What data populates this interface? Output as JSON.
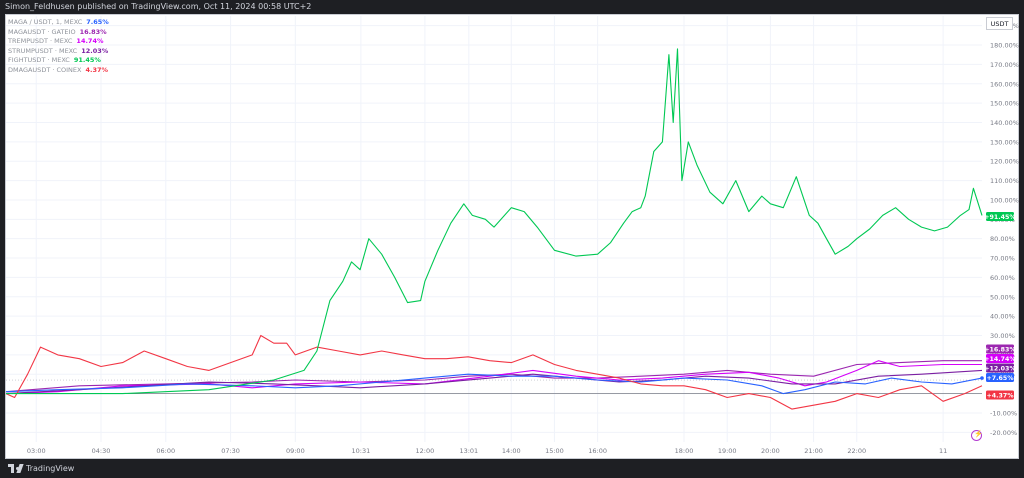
{
  "header": {
    "published": "Simon_Feldhusen published on TradingView.com, Oct 11, 2024 00:58 UTC+2"
  },
  "footer": {
    "brand": "TradingView"
  },
  "currency_button": "USDT",
  "colors": {
    "MAGA": "#2962ff",
    "MAGAUSDT": "#9c27b0",
    "TREMPUSDT": "#d500f9",
    "STRUMPUSDT": "#7b1fa2",
    "FIGHTUSDT": "#00c853",
    "DMAGAUSDT": "#f23645"
  },
  "legend": [
    {
      "name": "MAGA / USDT, 1, MEXC",
      "value": "7.65%",
      "color": "#2962ff"
    },
    {
      "name": "MAGAUSDT · GATEIO",
      "value": "16.83%",
      "color": "#9c27b0"
    },
    {
      "name": "TREMPUSDT · MEXC",
      "value": "14.74%",
      "color": "#d500f9"
    },
    {
      "name": "STRUMPUSDT · MEXC",
      "value": "12.03%",
      "color": "#7b1fa2"
    },
    {
      "name": "FIGHTUSDT · MEXC",
      "value": "91.45%",
      "color": "#00c853"
    },
    {
      "name": "DMAGAUSDT · COINEX",
      "value": "4.37%",
      "color": "#f23645"
    }
  ],
  "chart_data": {
    "type": "line",
    "ylabel_unit": "%",
    "ylim": [
      -25,
      195
    ],
    "y_ticks": [
      "190.00%",
      "180.00%",
      "170.00%",
      "160.00%",
      "150.00%",
      "140.00%",
      "130.00%",
      "120.00%",
      "110.00%",
      "100.00%",
      "90.00%",
      "80.00%",
      "70.00%",
      "60.00%",
      "50.00%",
      "40.00%",
      "30.00%",
      "20.00%",
      "10.00%",
      "0.00%",
      "-10.00%",
      "-20.00%"
    ],
    "y_tick_values": [
      190,
      180,
      170,
      160,
      150,
      140,
      130,
      120,
      110,
      100,
      90,
      80,
      70,
      60,
      50,
      40,
      30,
      20,
      10,
      0,
      -10,
      -20
    ],
    "x_ticks": [
      "03:00",
      "04:30",
      "06:00",
      "07:30",
      "09:00",
      "10:31",
      "12:00",
      "13:01",
      "14:00",
      "15:00",
      "16:00",
      "18:00",
      "19:00",
      "20:00",
      "21:00",
      "22:00",
      "11"
    ],
    "x_tick_hours": [
      3,
      4.5,
      6,
      7.5,
      9,
      10.517,
      12,
      13.017,
      14,
      15,
      16,
      18,
      19,
      20,
      21,
      22,
      24
    ],
    "x_range_hours": [
      2.3,
      24.9
    ],
    "series": [
      {
        "key": "FIGHTUSDT",
        "label": "+91.45%",
        "x": [
          2.3,
          5,
          7,
          8.5,
          9.2,
          9.5,
          9.8,
          10.1,
          10.3,
          10.5,
          10.7,
          11,
          11.3,
          11.6,
          11.9,
          12,
          12.3,
          12.6,
          12.9,
          13.1,
          13.4,
          13.6,
          14,
          14.3,
          14.6,
          15,
          15.5,
          16,
          16.3,
          16.6,
          16.8,
          17,
          17.1,
          17.3,
          17.5,
          17.65,
          17.75,
          17.85,
          17.95,
          18.1,
          18.3,
          18.6,
          18.9,
          19.2,
          19.5,
          19.8,
          20,
          20.3,
          20.6,
          20.9,
          21.1,
          21.3,
          21.5,
          21.8,
          22,
          22.3,
          22.6,
          22.9,
          23.2,
          23.5,
          23.8,
          24.1,
          24.4,
          24.6,
          24.7,
          24.9
        ],
        "y": [
          0,
          0,
          2,
          7,
          12,
          22,
          48,
          58,
          68,
          64,
          80,
          72,
          60,
          47,
          48,
          58,
          74,
          88,
          98,
          92,
          90,
          86,
          96,
          94,
          86,
          74,
          71,
          72,
          78,
          88,
          94,
          96,
          102,
          125,
          130,
          175,
          140,
          178,
          110,
          130,
          118,
          104,
          98,
          110,
          94,
          102,
          98,
          96,
          112,
          92,
          88,
          80,
          72,
          76,
          80,
          85,
          92,
          96,
          90,
          86,
          84,
          86,
          92,
          95,
          106,
          92
        ]
      },
      {
        "key": "MAGAUSDT",
        "label": "+16.83%",
        "x": [
          2.3,
          4,
          6,
          8,
          9,
          10.5,
          12,
          13,
          14,
          15,
          16,
          17,
          18,
          19,
          20,
          21,
          22,
          23,
          24,
          24.9
        ],
        "y": [
          1,
          4,
          5,
          6,
          7,
          6,
          7,
          9,
          10,
          8,
          8,
          9,
          10,
          12,
          10,
          9,
          15,
          16,
          17,
          17
        ]
      },
      {
        "key": "TREMPUSDT",
        "label": "+14.74%",
        "x": [
          2.3,
          3.5,
          5,
          7,
          8,
          9,
          10.5,
          12,
          13.5,
          14.5,
          15.5,
          16.5,
          17.5,
          18.5,
          19.5,
          20.2,
          20.8,
          21.3,
          22,
          22.5,
          23,
          24,
          24.9
        ],
        "y": [
          0,
          1,
          4,
          5,
          3,
          5,
          6,
          5,
          9,
          12,
          9,
          7,
          8,
          10,
          11,
          8,
          4,
          6,
          12,
          17,
          14,
          15,
          15
        ]
      },
      {
        "key": "STRUMPUSDT",
        "label": "+12.03%",
        "x": [
          2.3,
          4,
          5.5,
          7,
          8.5,
          9.5,
          10.5,
          12,
          13.5,
          14.5,
          15.5,
          16.5,
          17.5,
          18.5,
          19.5,
          20.5,
          21.5,
          22.5,
          23.5,
          24.9
        ],
        "y": [
          0,
          2,
          4,
          6,
          5,
          4,
          3,
          5,
          8,
          10,
          8,
          6,
          7,
          9,
          8,
          5,
          5,
          9,
          10,
          12
        ]
      },
      {
        "key": "MAGA",
        "label": "+7.65%",
        "x": [
          2.3,
          3.5,
          5,
          6.5,
          8,
          9,
          10,
          11,
          12,
          13,
          14,
          15,
          16,
          17,
          18,
          19,
          19.8,
          20.3,
          20.8,
          21.5,
          22.2,
          22.8,
          23.5,
          24.2,
          24.9
        ],
        "y": [
          1,
          2,
          3,
          5,
          4,
          3,
          4,
          6,
          8,
          10,
          9,
          9,
          7,
          6,
          8,
          7,
          4,
          0,
          2,
          6,
          5,
          8,
          6,
          5,
          8
        ]
      },
      {
        "key": "DMAGAUSDT",
        "label": "+4.37%",
        "x": [
          2.3,
          2.5,
          2.8,
          3.1,
          3.5,
          4,
          4.5,
          5,
          5.5,
          6,
          6.5,
          7,
          7.5,
          8,
          8.2,
          8.5,
          8.8,
          9,
          9.5,
          10,
          10.5,
          11,
          11.5,
          12,
          12.5,
          13,
          13.5,
          14,
          14.5,
          15,
          15.5,
          16,
          16.5,
          17,
          17.5,
          18,
          18.5,
          19,
          19.5,
          20,
          20.5,
          21,
          21.5,
          22,
          22.5,
          23,
          23.5,
          24,
          24.5,
          24.9
        ],
        "y": [
          0,
          -2,
          10,
          24,
          20,
          18,
          14,
          16,
          22,
          18,
          14,
          12,
          16,
          20,
          30,
          26,
          26,
          20,
          24,
          22,
          20,
          22,
          20,
          18,
          18,
          19,
          17,
          16,
          20,
          15,
          12,
          10,
          8,
          5,
          4,
          4,
          2,
          -2,
          0,
          -2,
          -8,
          -6,
          -4,
          0,
          -2,
          2,
          4,
          -4,
          0,
          4
        ]
      }
    ]
  }
}
